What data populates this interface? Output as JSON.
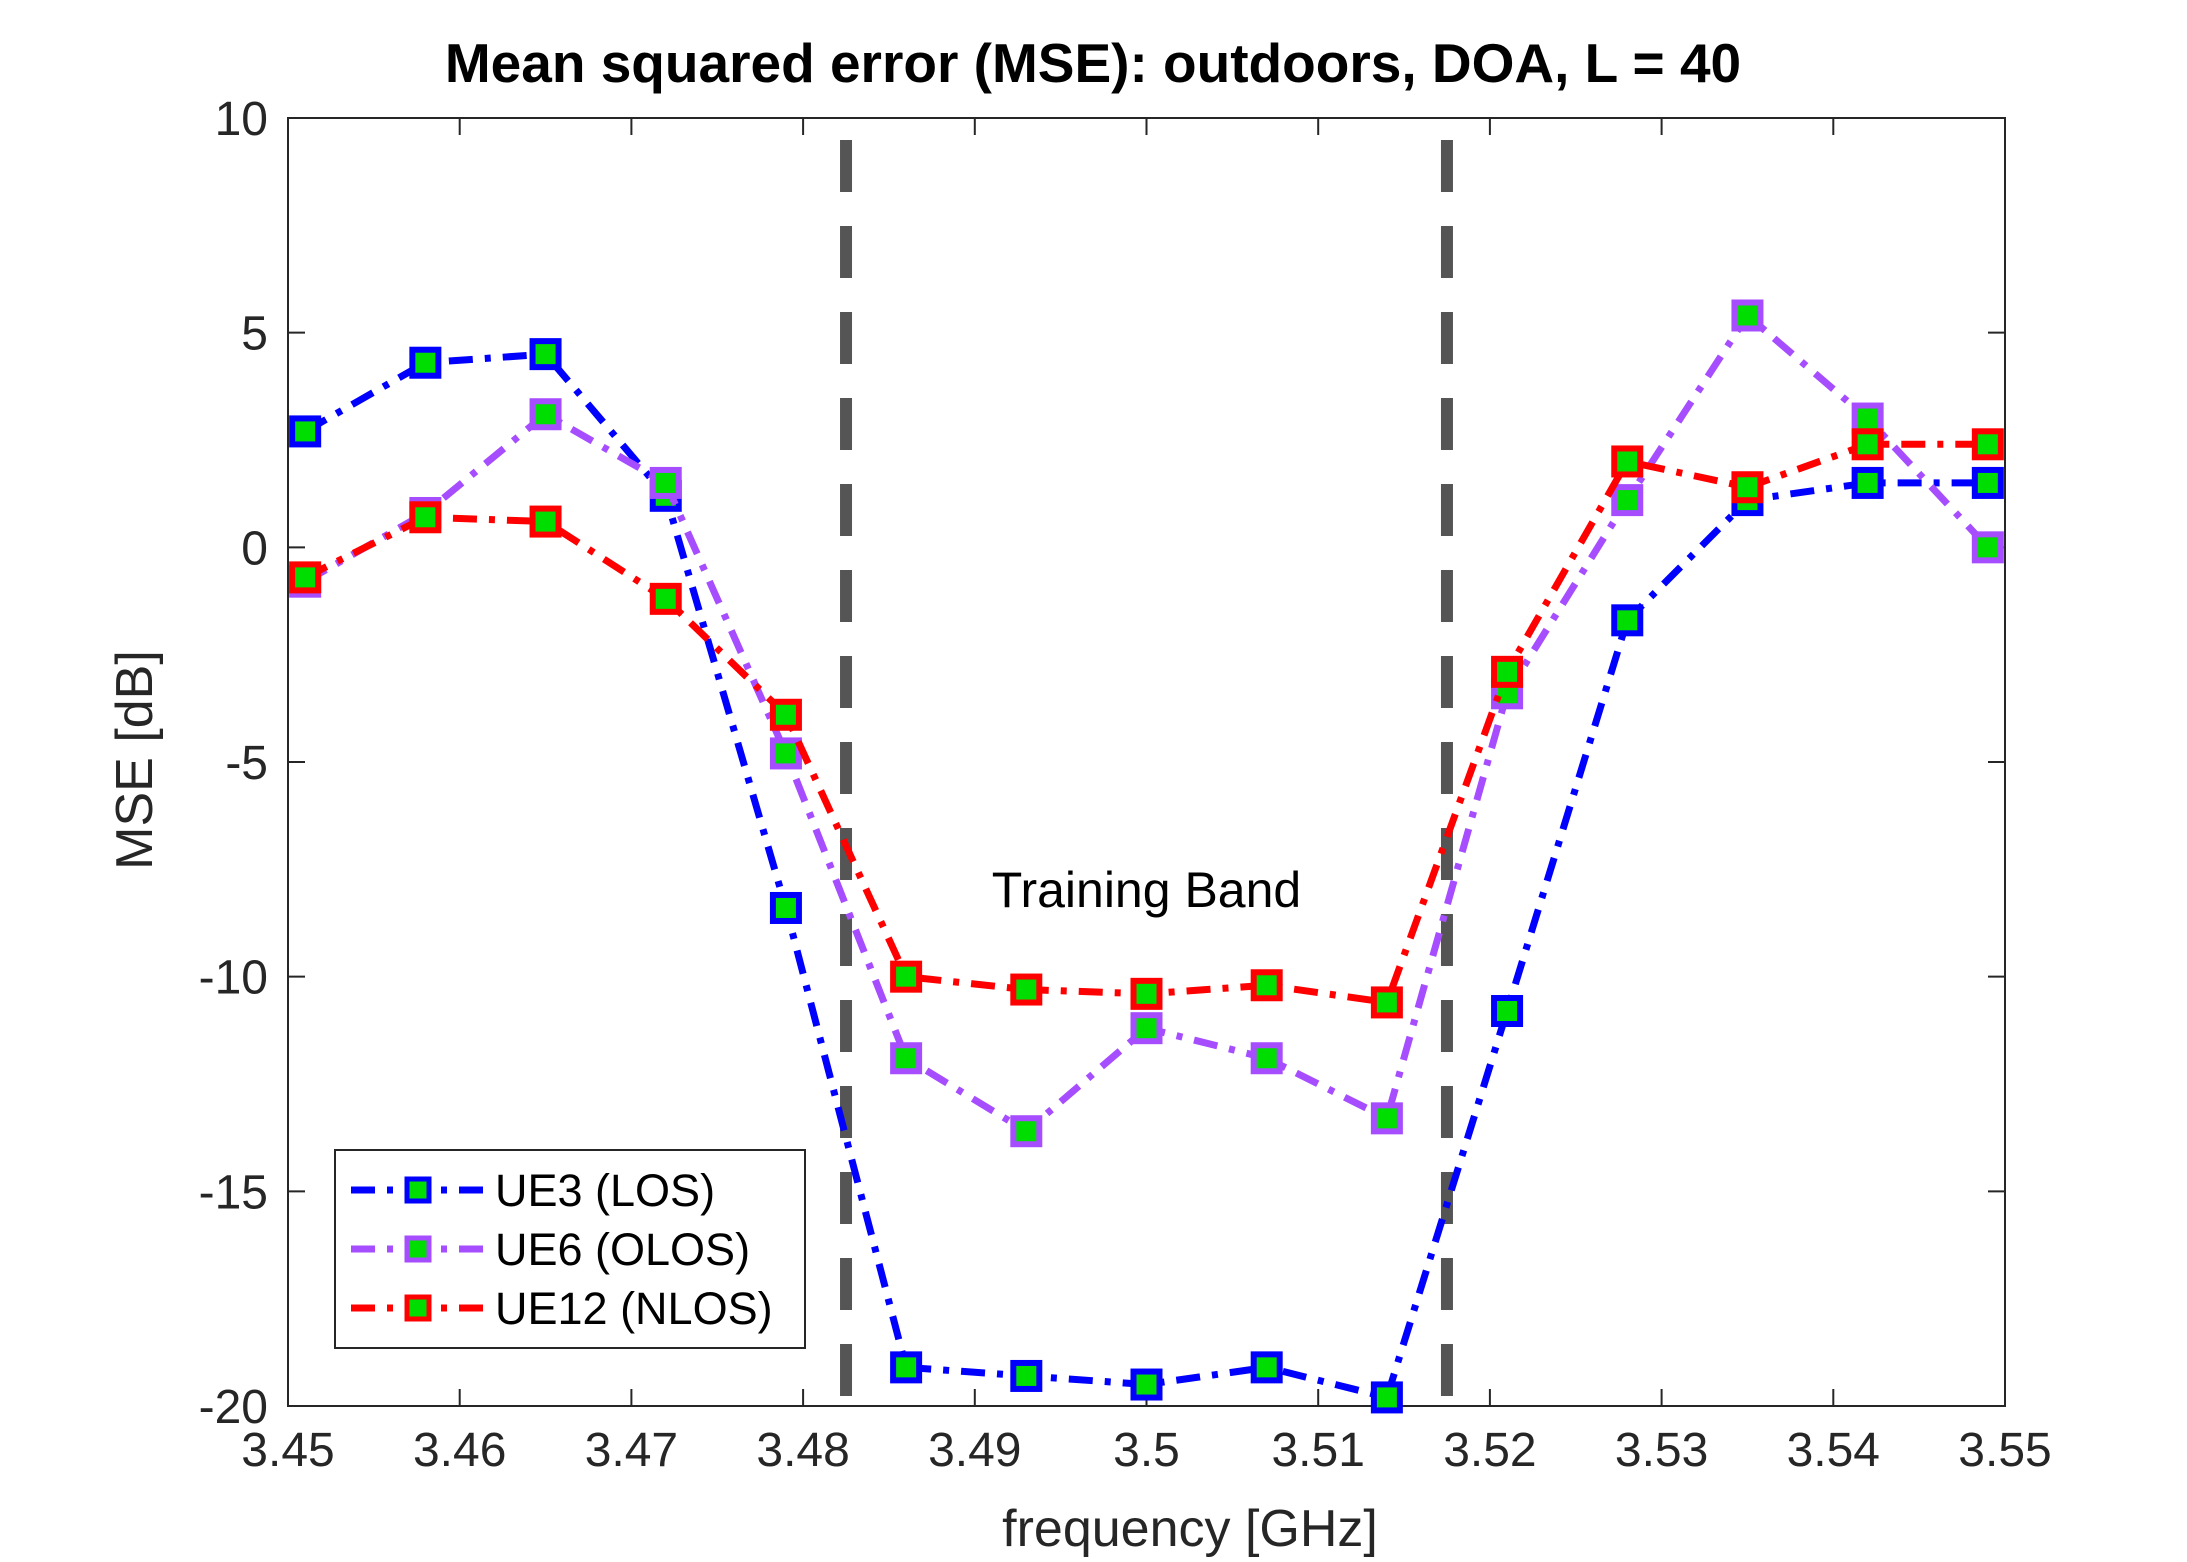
{
  "chart_data": {
    "type": "line",
    "title": "Mean squared error (MSE): outdoors, DOA, L = 40",
    "xlabel": "frequency [GHz]",
    "ylabel": "MSE [dB]",
    "xlim": [
      3.45,
      3.55
    ],
    "ylim": [
      -20,
      10
    ],
    "xticks": [
      3.45,
      3.46,
      3.47,
      3.48,
      3.49,
      3.5,
      3.51,
      3.52,
      3.53,
      3.54,
      3.55
    ],
    "xtick_labels": [
      "3.45",
      "3.46",
      "3.47",
      "3.48",
      "3.49",
      "3.5",
      "3.51",
      "3.52",
      "3.53",
      "3.54",
      "3.55"
    ],
    "yticks": [
      -20,
      -15,
      -10,
      -5,
      0,
      5,
      10
    ],
    "ytick_labels": [
      "-20",
      "-15",
      "-10",
      "-5",
      "0",
      "5",
      "10"
    ],
    "grid": false,
    "legend_position": "bottom-left",
    "marker_face_color": "#00dd00",
    "x": [
      3.451,
      3.458,
      3.465,
      3.472,
      3.479,
      3.486,
      3.493,
      3.5,
      3.507,
      3.514,
      3.521,
      3.528,
      3.535,
      3.542,
      3.549
    ],
    "series": [
      {
        "name": "UE3 (LOS)",
        "color": "#0000ff",
        "values": [
          2.7,
          4.3,
          4.5,
          1.2,
          -8.4,
          -19.1,
          -19.3,
          -19.5,
          -19.1,
          -19.8,
          -10.8,
          -1.7,
          1.1,
          1.5,
          1.5
        ]
      },
      {
        "name": "UE6 (OLOS)",
        "color": "#a64dff",
        "values": [
          -0.8,
          0.8,
          3.1,
          1.5,
          -4.8,
          -11.9,
          -13.6,
          -11.2,
          -11.9,
          -13.3,
          -3.4,
          1.1,
          5.4,
          3.0,
          0.0
        ]
      },
      {
        "name": "UE12 (NLOS)",
        "color": "#ff0000",
        "values": [
          -0.7,
          0.7,
          0.6,
          -1.2,
          -3.9,
          -10.0,
          -10.3,
          -10.4,
          -10.2,
          -10.6,
          -2.9,
          2.0,
          1.4,
          2.4,
          2.4
        ]
      }
    ],
    "reference_lines": {
      "x": [
        3.4825,
        3.5175
      ],
      "color": "#555555",
      "style": "dashed"
    },
    "annotation": {
      "text": "Training Band",
      "x": 3.5,
      "y": -8
    }
  }
}
